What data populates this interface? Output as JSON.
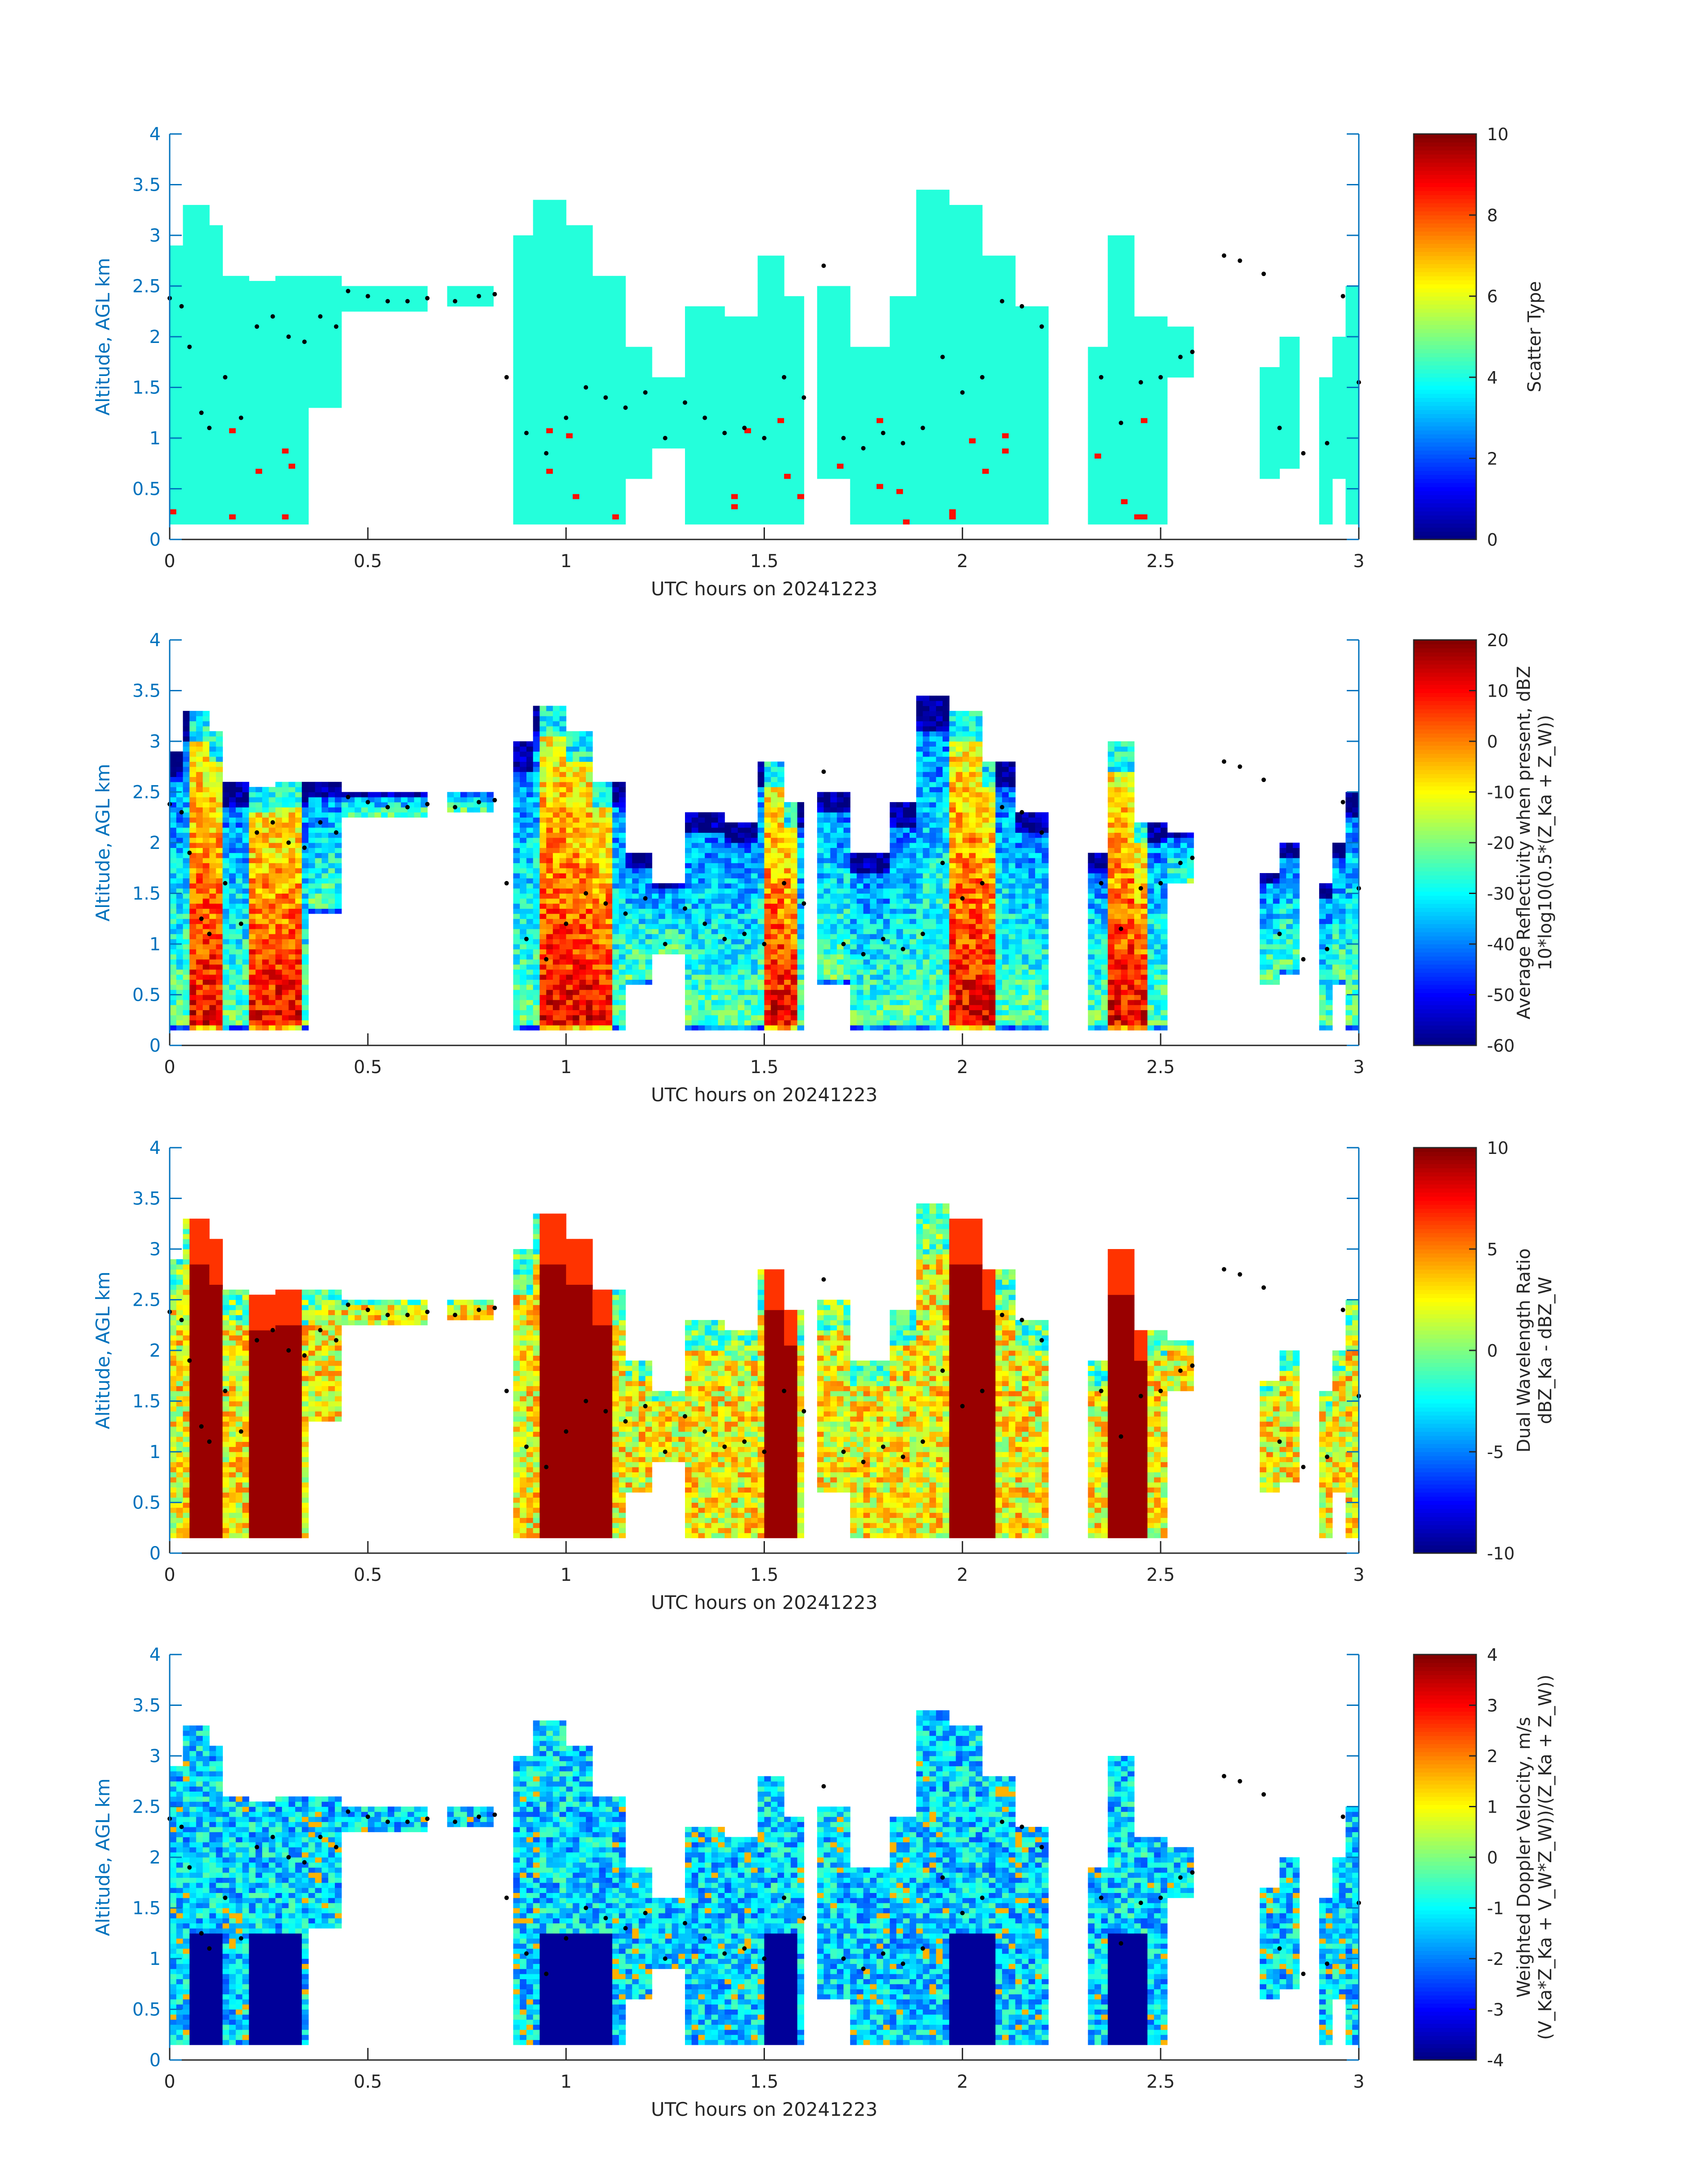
{
  "chart_data": [
    {
      "type": "heatmap",
      "xlabel": "UTC hours on 20241223",
      "ylabel": "Altitude, AGL km",
      "xlim": [
        0,
        3
      ],
      "ylim": [
        0,
        4
      ],
      "xticks": [
        "0",
        "0.5",
        "1",
        "1.5",
        "2",
        "2.5",
        "3"
      ],
      "yticks": [
        "0",
        "0.5",
        "1",
        "1.5",
        "2",
        "2.5",
        "3",
        "3.5",
        "4"
      ],
      "colorbar": {
        "label_lines": [
          "Scatter Type"
        ],
        "clim": [
          0,
          10
        ],
        "ticks": [
          "0",
          "2",
          "4",
          "6",
          "8",
          "10"
        ]
      },
      "dominant_value": 4.1,
      "note_values": "mostly scatter type ~4 (cyan) with isolated type ~9 (red) pixels near the surface"
    },
    {
      "type": "heatmap",
      "xlabel": "UTC hours on 20241223",
      "ylabel": "Altitude, AGL km",
      "xlim": [
        0,
        3
      ],
      "ylim": [
        0,
        4
      ],
      "xticks": [
        "0",
        "0.5",
        "1",
        "1.5",
        "2",
        "2.5",
        "3"
      ],
      "yticks": [
        "0",
        "0.5",
        "1",
        "1.5",
        "2",
        "2.5",
        "3",
        "3.5",
        "4"
      ],
      "colorbar": {
        "label_lines": [
          "Average Reflectivity when present, dBZ",
          "10*log10(0.5*(Z_Ka + Z_W))"
        ],
        "clim": [
          -60,
          20
        ],
        "ticks": [
          "-60",
          "-50",
          "-40",
          "-30",
          "-20",
          "-10",
          "0",
          "10",
          "20"
        ]
      }
    },
    {
      "type": "heatmap",
      "xlabel": "UTC hours on 20241223",
      "ylabel": "Altitude, AGL km",
      "xlim": [
        0,
        3
      ],
      "ylim": [
        0,
        4
      ],
      "xticks": [
        "0",
        "0.5",
        "1",
        "1.5",
        "2",
        "2.5",
        "3"
      ],
      "yticks": [
        "0",
        "0.5",
        "1",
        "1.5",
        "2",
        "2.5",
        "3",
        "3.5",
        "4"
      ],
      "colorbar": {
        "label_lines": [
          "Dual Wavelength Ratio",
          "dBZ_Ka - dBZ_W"
        ],
        "clim": [
          -10,
          10
        ],
        "ticks": [
          "-10",
          "-5",
          "0",
          "5",
          "10"
        ]
      }
    },
    {
      "type": "heatmap",
      "xlabel": "UTC hours on 20241223",
      "ylabel": "Altitude, AGL km",
      "xlim": [
        0,
        3
      ],
      "ylim": [
        0,
        4
      ],
      "xticks": [
        "0",
        "0.5",
        "1",
        "1.5",
        "2",
        "2.5",
        "3"
      ],
      "yticks": [
        "0",
        "0.5",
        "1",
        "1.5",
        "2",
        "2.5",
        "3",
        "3.5",
        "4"
      ],
      "colorbar": {
        "label_lines": [
          "Weighted Doppler Velocity, m/s",
          "(V_Ka*Z_Ka + V_W*Z_W))/(Z_Ka + Z_W))"
        ],
        "clim": [
          -4,
          4
        ],
        "ticks": [
          "-4",
          "-3",
          "-2",
          "-1",
          "0",
          "1",
          "2",
          "3",
          "4"
        ]
      }
    }
  ],
  "echo_columns": [
    {
      "t0": 0.0,
      "t1": 0.03,
      "base": 0.15,
      "top": 2.9
    },
    {
      "t0": 0.03,
      "t1": 0.1,
      "base": 0.15,
      "top": 3.3
    },
    {
      "t0": 0.1,
      "t1": 0.14,
      "base": 0.15,
      "top": 3.1
    },
    {
      "t0": 0.14,
      "t1": 0.2,
      "base": 0.15,
      "top": 2.6
    },
    {
      "t0": 0.2,
      "t1": 0.27,
      "base": 0.15,
      "top": 2.55
    },
    {
      "t0": 0.27,
      "t1": 0.35,
      "base": 0.15,
      "top": 2.6
    },
    {
      "t0": 0.35,
      "t1": 0.44,
      "base": 1.3,
      "top": 2.6
    },
    {
      "t0": 0.44,
      "t1": 0.65,
      "base": 2.25,
      "top": 2.5
    },
    {
      "t0": 0.7,
      "t1": 0.82,
      "base": 2.3,
      "top": 2.5
    },
    {
      "t0": 0.87,
      "t1": 0.92,
      "base": 0.15,
      "top": 3.0
    },
    {
      "t0": 0.92,
      "t1": 1.0,
      "base": 0.15,
      "top": 3.35
    },
    {
      "t0": 1.0,
      "t1": 1.07,
      "base": 0.15,
      "top": 3.1
    },
    {
      "t0": 1.07,
      "t1": 1.15,
      "base": 0.15,
      "top": 2.6
    },
    {
      "t0": 1.15,
      "t1": 1.22,
      "base": 0.6,
      "top": 1.9
    },
    {
      "t0": 1.22,
      "t1": 1.3,
      "base": 0.9,
      "top": 1.6
    },
    {
      "t0": 1.3,
      "t1": 1.4,
      "base": 0.15,
      "top": 2.3
    },
    {
      "t0": 1.4,
      "t1": 1.48,
      "base": 0.15,
      "top": 2.2
    },
    {
      "t0": 1.48,
      "t1": 1.55,
      "base": 0.15,
      "top": 2.8
    },
    {
      "t0": 1.55,
      "t1": 1.6,
      "base": 0.15,
      "top": 2.4
    },
    {
      "t0": 1.63,
      "t1": 1.72,
      "base": 0.6,
      "top": 2.5
    },
    {
      "t0": 1.72,
      "t1": 1.82,
      "base": 0.15,
      "top": 1.9
    },
    {
      "t0": 1.82,
      "t1": 1.88,
      "base": 0.15,
      "top": 2.4
    },
    {
      "t0": 1.88,
      "t1": 1.96,
      "base": 0.15,
      "top": 3.45
    },
    {
      "t0": 1.96,
      "t1": 2.05,
      "base": 0.15,
      "top": 3.3
    },
    {
      "t0": 2.05,
      "t1": 2.13,
      "base": 0.15,
      "top": 2.8
    },
    {
      "t0": 2.13,
      "t1": 2.22,
      "base": 0.15,
      "top": 2.3
    },
    {
      "t0": 2.31,
      "t1": 2.36,
      "base": 0.15,
      "top": 1.9
    },
    {
      "t0": 2.36,
      "t1": 2.44,
      "base": 0.15,
      "top": 3.0
    },
    {
      "t0": 2.44,
      "t1": 2.52,
      "base": 0.15,
      "top": 2.2
    },
    {
      "t0": 2.52,
      "t1": 2.58,
      "base": 1.6,
      "top": 2.1
    },
    {
      "t0": 2.75,
      "t1": 2.8,
      "base": 0.6,
      "top": 1.7
    },
    {
      "t0": 2.8,
      "t1": 2.85,
      "base": 0.7,
      "top": 2.0
    },
    {
      "t0": 2.9,
      "t1": 2.93,
      "base": 0.15,
      "top": 1.6
    },
    {
      "t0": 2.93,
      "t1": 2.97,
      "base": 0.6,
      "top": 2.0
    },
    {
      "t0": 2.97,
      "t1": 3.0,
      "base": 0.15,
      "top": 2.5
    }
  ],
  "dot_trace": {
    "t": [
      0.0,
      0.03,
      0.05,
      0.08,
      0.1,
      0.14,
      0.18,
      0.22,
      0.26,
      0.3,
      0.34,
      0.38,
      0.42,
      0.45,
      0.5,
      0.55,
      0.6,
      0.65,
      0.72,
      0.78,
      0.82,
      0.85,
      0.9,
      0.95,
      1.0,
      1.05,
      1.1,
      1.15,
      1.2,
      1.25,
      1.3,
      1.35,
      1.4,
      1.45,
      1.5,
      1.55,
      1.6,
      1.65,
      1.7,
      1.75,
      1.8,
      1.85,
      1.9,
      1.95,
      2.0,
      2.05,
      2.1,
      2.15,
      2.2,
      2.35,
      2.4,
      2.45,
      2.5,
      2.55,
      2.58,
      2.66,
      2.7,
      2.76,
      2.8,
      2.86,
      2.92,
      2.96,
      3.0
    ],
    "alt": [
      2.38,
      2.3,
      1.9,
      1.25,
      1.1,
      1.6,
      1.2,
      2.1,
      2.2,
      2.0,
      1.95,
      2.2,
      2.1,
      2.45,
      2.4,
      2.35,
      2.35,
      2.38,
      2.35,
      2.4,
      2.42,
      1.6,
      1.05,
      0.85,
      1.2,
      1.5,
      1.4,
      1.3,
      1.45,
      1.0,
      1.35,
      1.2,
      1.05,
      1.1,
      1.0,
      1.6,
      1.4,
      2.7,
      1.0,
      0.9,
      1.05,
      0.95,
      1.1,
      1.8,
      1.45,
      1.6,
      2.35,
      2.3,
      2.1,
      1.6,
      1.15,
      1.55,
      1.6,
      1.8,
      1.85,
      2.8,
      2.75,
      2.62,
      1.1,
      0.85,
      0.95,
      2.4,
      1.55
    ]
  }
}
